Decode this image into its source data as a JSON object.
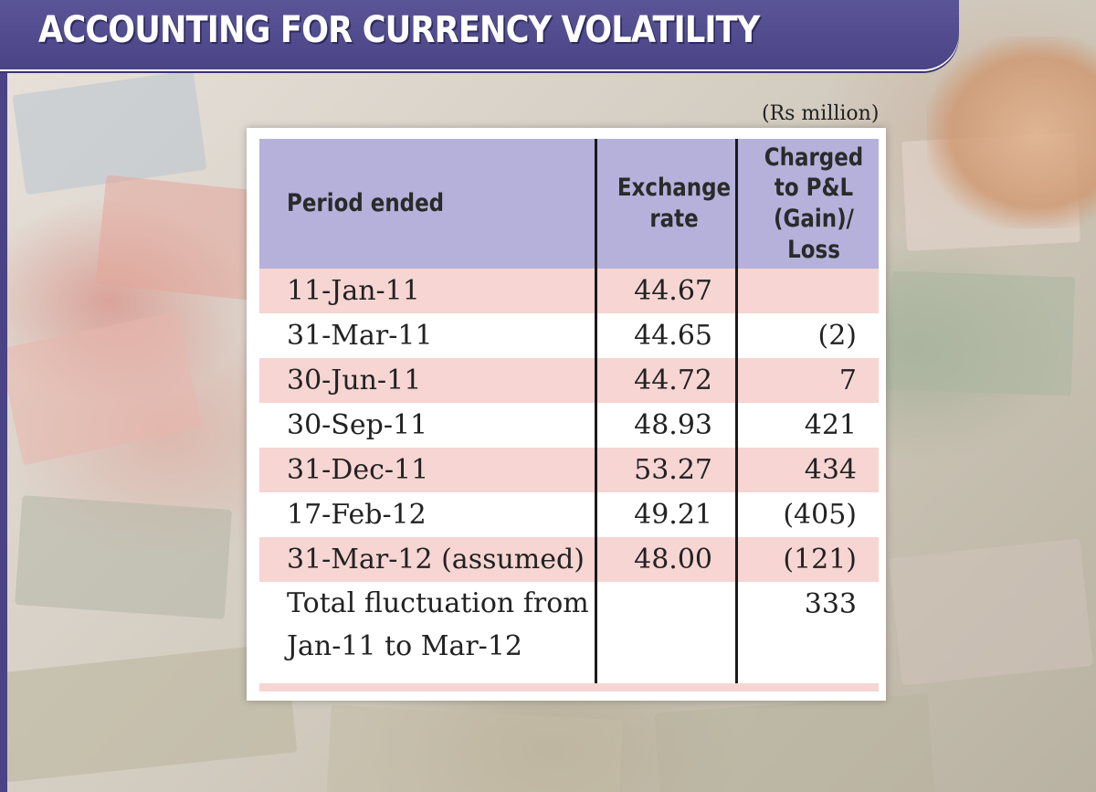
{
  "title": "ACCOUNTING FOR CURRENCY VOLATILITY",
  "units": "(Rs million)",
  "table": {
    "headers": {
      "period": "Period ended",
      "rate": "Exchange\nrate",
      "pl": "Charged\nto P&L\n(Gain)/ Loss"
    },
    "rows": [
      {
        "period": "11-Jan-11",
        "rate": "44.67",
        "pl": ""
      },
      {
        "period": "31-Mar-11",
        "rate": "44.65",
        "pl": "(2)"
      },
      {
        "period": "30-Jun-11",
        "rate": "44.72",
        "pl": "7"
      },
      {
        "period": "30-Sep-11",
        "rate": "48.93",
        "pl": "421"
      },
      {
        "period": "31-Dec-11",
        "rate": "53.27",
        "pl": "434"
      },
      {
        "period": "17-Feb-12",
        "rate": "49.21",
        "pl": "(405)"
      },
      {
        "period": "31-Mar-12 (assumed)",
        "rate": "48.00",
        "pl": "(121)"
      }
    ],
    "total": {
      "period": "Total fluctuation from Jan-11 to Mar-12",
      "rate": "",
      "pl": "333"
    }
  },
  "colors": {
    "banner": "#4a4487",
    "header_fill": "#b5b1db",
    "row_stripe": "#f6d5d3"
  }
}
